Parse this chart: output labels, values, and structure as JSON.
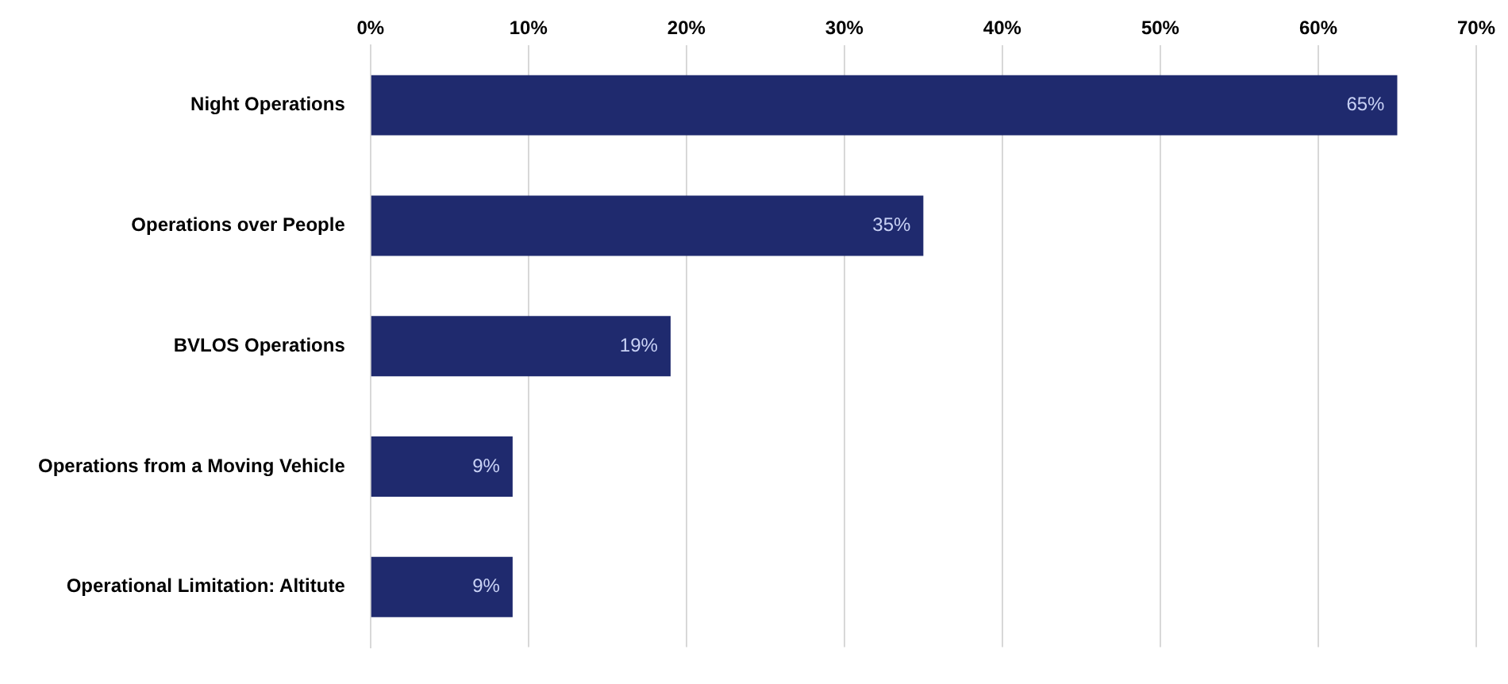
{
  "chart_data": {
    "type": "bar",
    "orientation": "horizontal",
    "categories": [
      "Night Operations",
      "Operations over People",
      "BVLOS Operations",
      "Operations from a Moving Vehicle",
      "Operational Limitation: Altitute"
    ],
    "values": [
      65,
      35,
      19,
      9,
      9
    ],
    "value_labels": [
      "65%",
      "35%",
      "19%",
      "9%",
      "9%"
    ],
    "color": "#1f2a6e",
    "xlim": [
      0,
      70
    ],
    "xticks": [
      {
        "value": 0,
        "label": "0%"
      },
      {
        "value": 10,
        "label": "10%"
      },
      {
        "value": 20,
        "label": "20%"
      },
      {
        "value": 30,
        "label": "30%"
      },
      {
        "value": 40,
        "label": "40%"
      },
      {
        "value": 50,
        "label": "50%"
      },
      {
        "value": 60,
        "label": "60%"
      },
      {
        "value": 70,
        "label": "70%"
      }
    ],
    "grid": "x",
    "legend": false
  }
}
